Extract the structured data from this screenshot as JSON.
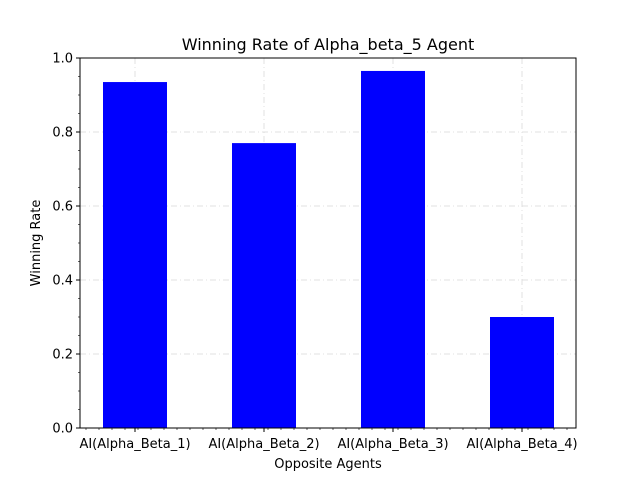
{
  "chart_data": {
    "type": "bar",
    "title": "Winning Rate of Alpha_beta_5 Agent",
    "xlabel": "Opposite Agents",
    "ylabel": "Winning Rate",
    "categories": [
      "AI(Alpha_Beta_1)",
      "AI(Alpha_Beta_2)",
      "AI(Alpha_Beta_3)",
      "AI(Alpha_Beta_4)"
    ],
    "values": [
      0.935,
      0.77,
      0.965,
      0.3
    ],
    "ylim": [
      0,
      1.0
    ],
    "yticks": [
      "0.0",
      "0.2",
      "0.4",
      "0.6",
      "0.8",
      "1.0"
    ],
    "grid": true,
    "bar_color": "#0000ff"
  }
}
